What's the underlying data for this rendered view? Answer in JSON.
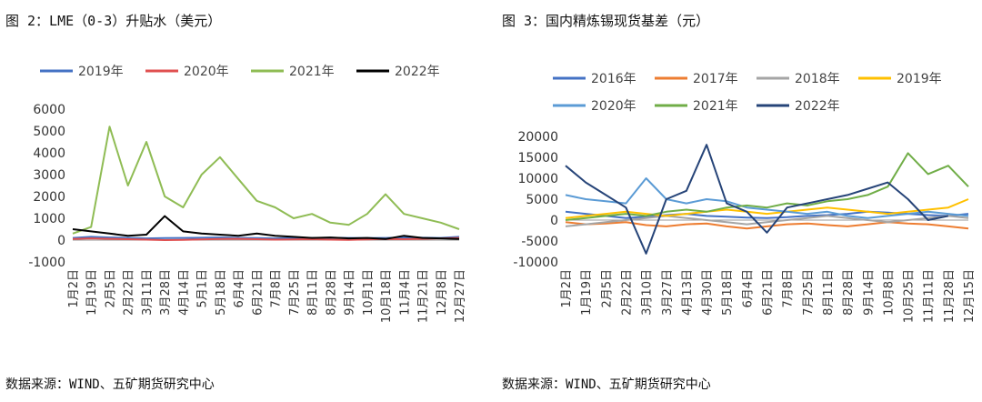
{
  "left": {
    "title": "图 2：LME（0-3）升贴水（美元）",
    "source": "数据来源：WIND、五矿期货研究中心",
    "colors": {
      "2019年": "#4472c4",
      "2020年": "#e05050",
      "2021年": "#8fbc54",
      "2022年": "#000000"
    }
  },
  "right": {
    "title": "图 3：国内精炼锡现货基差（元）",
    "source": "数据来源：WIND、五矿期货研究中心",
    "colors": {
      "2016年": "#4472c4",
      "2017年": "#ed7d31",
      "2018年": "#a5a5a5",
      "2019年": "#ffc000",
      "2020年": "#5b9bd5",
      "2021年": "#70ad47",
      "2022年": "#264478"
    }
  },
  "chart_data": [
    {
      "type": "line",
      "xlabel": "",
      "ylabel": "",
      "ylim": [
        -1000,
        6000
      ],
      "yticks": [
        -1000,
        0,
        1000,
        2000,
        3000,
        4000,
        5000,
        6000
      ],
      "categories": [
        "1月2日",
        "1月19日",
        "2月5日",
        "2月22日",
        "3月11日",
        "3月28日",
        "4月14日",
        "5月1日",
        "5月18日",
        "6月4日",
        "6月21日",
        "7月8日",
        "7月25日",
        "8月11日",
        "8月28日",
        "9月14日",
        "10月1日",
        "10月18日",
        "11月4日",
        "11月21日",
        "12月8日",
        "12月27日"
      ],
      "legend_position": "top",
      "series": [
        {
          "name": "2019年",
          "values": [
            100,
            150,
            120,
            100,
            80,
            90,
            100,
            110,
            120,
            100,
            90,
            80,
            90,
            100,
            110,
            100,
            90,
            100,
            120,
            110,
            100,
            150
          ]
        },
        {
          "name": "2020年",
          "values": [
            50,
            80,
            60,
            40,
            20,
            0,
            10,
            30,
            50,
            60,
            40,
            20,
            30,
            40,
            20,
            10,
            30,
            50,
            40,
            60,
            80,
            100
          ]
        },
        {
          "name": "2021年",
          "values": [
            300,
            600,
            5200,
            2500,
            4500,
            2000,
            1500,
            3000,
            3800,
            2800,
            1800,
            1500,
            1000,
            1200,
            800,
            700,
            1200,
            2100,
            1200,
            1000,
            800,
            500
          ]
        },
        {
          "name": "2022年",
          "values": [
            500,
            400,
            300,
            200,
            250,
            1100,
            400,
            300,
            250,
            200,
            300,
            200,
            150,
            100,
            120,
            80,
            100,
            50,
            200,
            100,
            80,
            50
          ]
        }
      ]
    },
    {
      "type": "line",
      "xlabel": "",
      "ylabel": "",
      "ylim": [
        -10000,
        20000
      ],
      "yticks": [
        -10000,
        -5000,
        0,
        5000,
        10000,
        15000,
        20000
      ],
      "categories": [
        "1月2日",
        "1月19日",
        "2月5日",
        "2月22日",
        "3月10日",
        "3月27日",
        "4月13日",
        "4月30日",
        "5月18日",
        "6月4日",
        "6月21日",
        "7月8日",
        "7月25日",
        "8月11日",
        "8月28日",
        "9月14日",
        "10月8日",
        "10月25日",
        "11月11日",
        "11月28日",
        "12月15日"
      ],
      "legend_position": "top",
      "series": [
        {
          "name": "2016年",
          "values": [
            2000,
            1500,
            1000,
            500,
            800,
            1200,
            1500,
            1000,
            800,
            600,
            500,
            700,
            1000,
            1200,
            1500,
            2000,
            1800,
            1500,
            1200,
            1000,
            1500
          ]
        },
        {
          "name": "2017年",
          "values": [
            -500,
            -1000,
            -800,
            -500,
            -1200,
            -1500,
            -1000,
            -800,
            -1500,
            -2000,
            -1500,
            -1000,
            -800,
            -1200,
            -1500,
            -1000,
            -500,
            -800,
            -1000,
            -1500,
            -2000
          ]
        },
        {
          "name": "2018年",
          "values": [
            -1500,
            -1000,
            -500,
            0,
            500,
            1000,
            500,
            0,
            -500,
            -1000,
            -500,
            0,
            500,
            1000,
            500,
            0,
            -500,
            0,
            500,
            1000,
            500
          ]
        },
        {
          "name": "2019年",
          "values": [
            500,
            1000,
            1500,
            2000,
            1500,
            1000,
            1500,
            2000,
            2500,
            2000,
            1500,
            2000,
            2500,
            3000,
            2500,
            2000,
            1500,
            2000,
            2500,
            3000,
            5000
          ]
        },
        {
          "name": "2020年",
          "values": [
            6000,
            5000,
            4500,
            4000,
            10000,
            5000,
            4000,
            5000,
            4500,
            3000,
            2500,
            2000,
            1500,
            2000,
            1000,
            500,
            1000,
            1500,
            2000,
            1500,
            1000
          ]
        },
        {
          "name": "2021年",
          "values": [
            0,
            500,
            1000,
            1500,
            1000,
            2000,
            2500,
            2000,
            3000,
            3500,
            3000,
            4000,
            3500,
            4500,
            5000,
            6000,
            8000,
            16000,
            11000,
            13000,
            8000
          ]
        },
        {
          "name": "2022年",
          "values": [
            13000,
            9000,
            6000,
            3000,
            -8000,
            5000,
            7000,
            18000,
            4000,
            2000,
            -3000,
            3000,
            4000,
            5000,
            6000,
            7500,
            9000,
            5000,
            0,
            1000,
            null
          ]
        }
      ]
    }
  ]
}
